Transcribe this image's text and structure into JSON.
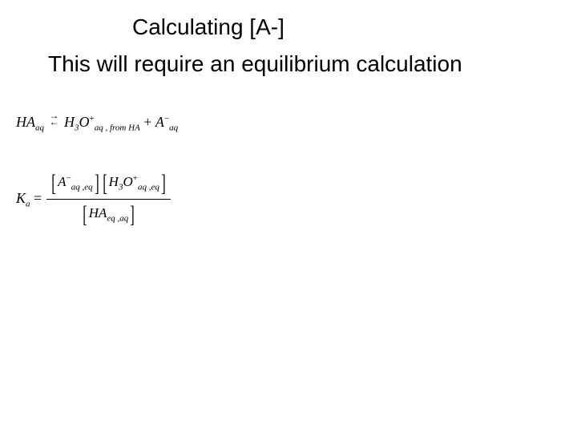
{
  "title": "Calculating [A-]",
  "subtitle": "This will require an equilibrium calculation",
  "reaction": {
    "lhs_species": "HA",
    "lhs_sub": "aq",
    "arrow_top": "→",
    "arrow_bot": "←",
    "p1_species": "H",
    "p1_sub1": "3",
    "p1_species2": "O",
    "p1_sup": "+",
    "p1_sub2": "aq , from HA",
    "plus": " + ",
    "p2_species": "A",
    "p2_sup": "−",
    "p2_sub": "aq"
  },
  "ka": {
    "lhs_K": "K",
    "lhs_sub": "a",
    "equals": " = ",
    "num_b1_species": "A",
    "num_b1_sup": "−",
    "num_b1_sub": "aq ,eq",
    "num_b2_species": "H",
    "num_b2_sub1": "3",
    "num_b2_species2": "O",
    "num_b2_sup": "+",
    "num_b2_sub2": "aq ,eq",
    "den_species": "HA",
    "den_sub": "eq ,aq"
  },
  "colors": {
    "background": "#ffffff",
    "text": "#000000"
  },
  "fonts": {
    "heading_family": "Arial",
    "heading_size_pt": 21,
    "equation_family": "Times New Roman",
    "equation_size_pt": 13
  }
}
